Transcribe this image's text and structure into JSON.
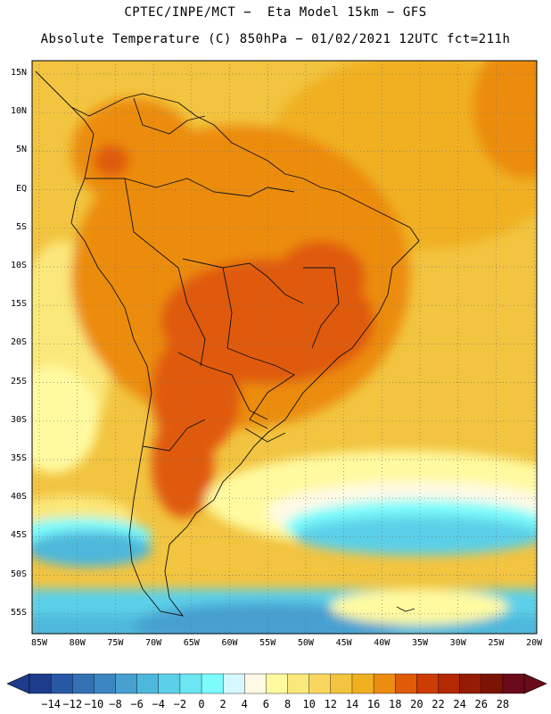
{
  "title": {
    "line1": "CPTEC/INPE/MCT −  Eta Model 15km − GFS",
    "line2": "Absolute Temperature (C) 850hPa − 01/02/2021 12UTC fct=211h"
  },
  "map": {
    "lat_labels": [
      "15N",
      "10N",
      "5N",
      "EQ",
      "5S",
      "10S",
      "15S",
      "20S",
      "25S",
      "30S",
      "35S",
      "40S",
      "45S",
      "50S",
      "55S"
    ],
    "lon_labels": [
      "85W",
      "80W",
      "75W",
      "70W",
      "65W",
      "60W",
      "55W",
      "50W",
      "45W",
      "40W",
      "35W",
      "30W",
      "25W",
      "20W"
    ],
    "grid": "dotted"
  },
  "colorbar": {
    "labels": [
      "-14",
      "-12",
      "-10",
      "-8",
      "-6",
      "-4",
      "-2",
      "0",
      "2",
      "4",
      "6",
      "8",
      "10",
      "12",
      "14",
      "16",
      "18",
      "20",
      "22",
      "24",
      "26",
      "28"
    ],
    "colors": [
      "#1e3c8c",
      "#2857a4",
      "#3370b4",
      "#3c86c2",
      "#46a0d0",
      "#4eb8dc",
      "#5cd0e8",
      "#6ce6f2",
      "#7cfcfc",
      "#d6f8ff",
      "#fffae6",
      "#fffaa0",
      "#fbe87a",
      "#f8d660",
      "#f2c440",
      "#f0b020",
      "#ec8c10",
      "#e05a08",
      "#cc3c04",
      "#b42804",
      "#941c04",
      "#7a1404",
      "#6a0a1a"
    ]
  }
}
